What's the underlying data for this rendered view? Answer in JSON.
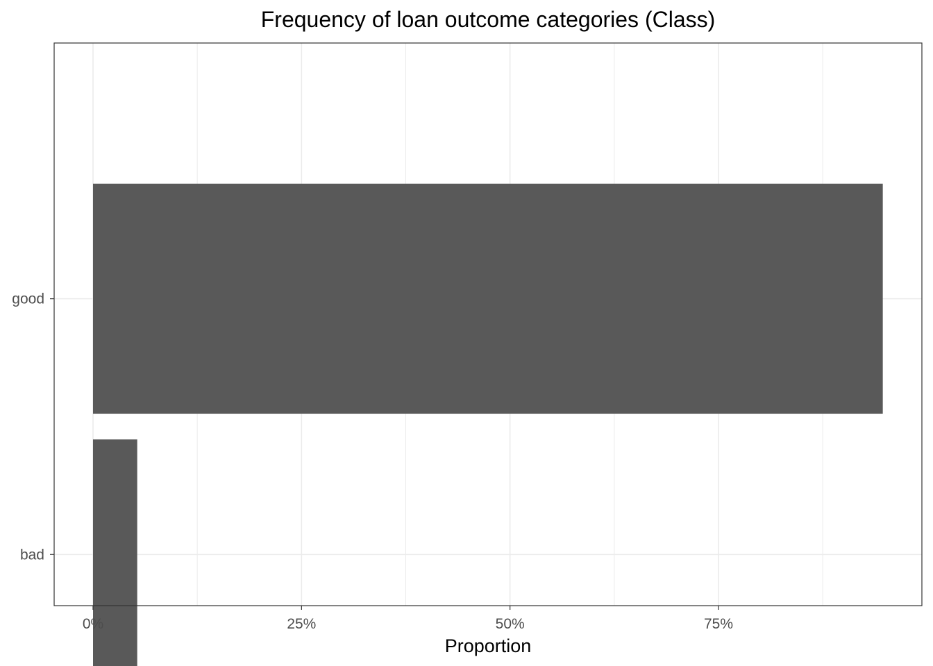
{
  "chart_data": {
    "type": "bar",
    "orientation": "horizontal",
    "title": "Frequency of loan outcome categories (Class)",
    "xlabel": "Proportion",
    "ylabel": "",
    "categories": [
      "good",
      "bad"
    ],
    "values": [
      0.947,
      0.053
    ],
    "xlim": [
      -0.047,
      1.0
    ],
    "xticks": [
      0,
      0.25,
      0.5,
      0.75
    ],
    "xtick_labels": [
      "0%",
      "25%",
      "50%",
      "75%"
    ],
    "grid": true,
    "bar_color": "#595959",
    "grid_color": "#ebebeb",
    "panel_border_color": "#333333"
  }
}
